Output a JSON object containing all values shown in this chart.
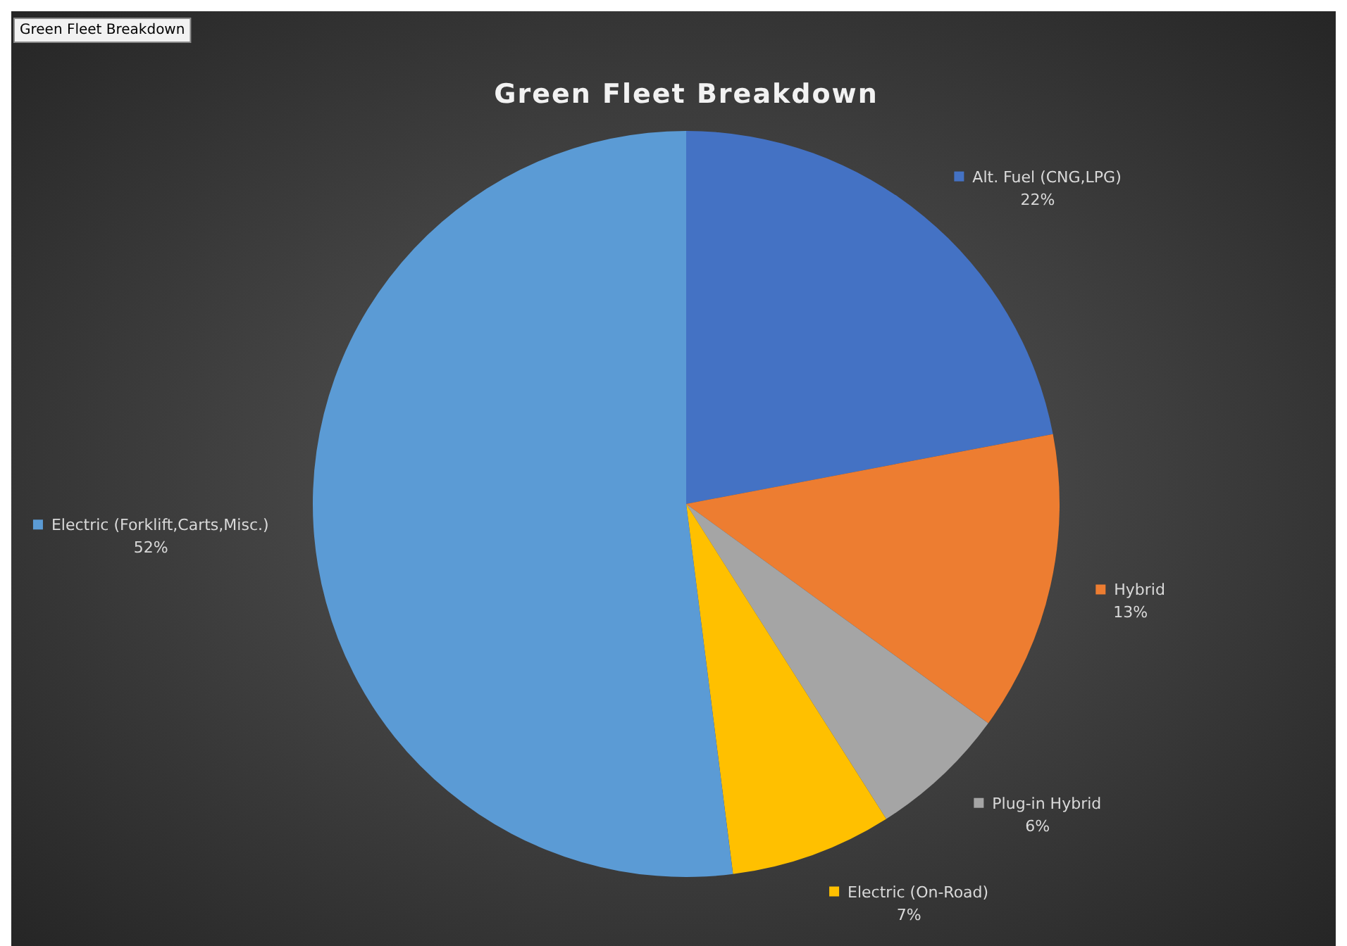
{
  "chart_data": {
    "type": "pie",
    "title": "Green Fleet Breakdown",
    "annotations": [
      "Green Fleet Breakdown"
    ],
    "categories": [
      "Alt. Fuel (CNG,LPG)",
      "Hybrid",
      "Plug-in Hybrid",
      "Electric (On-Road)",
      "Electric (Forklift,Carts,Misc.)"
    ],
    "values": [
      22,
      13,
      6,
      7,
      52
    ],
    "value_labels": [
      "22%",
      "13%",
      "6%",
      "7%",
      "52%"
    ],
    "colors": [
      "#4472c4",
      "#ed7d31",
      "#a5a5a5",
      "#ffc000",
      "#5b9bd5"
    ],
    "legend": "bottom left"
  }
}
